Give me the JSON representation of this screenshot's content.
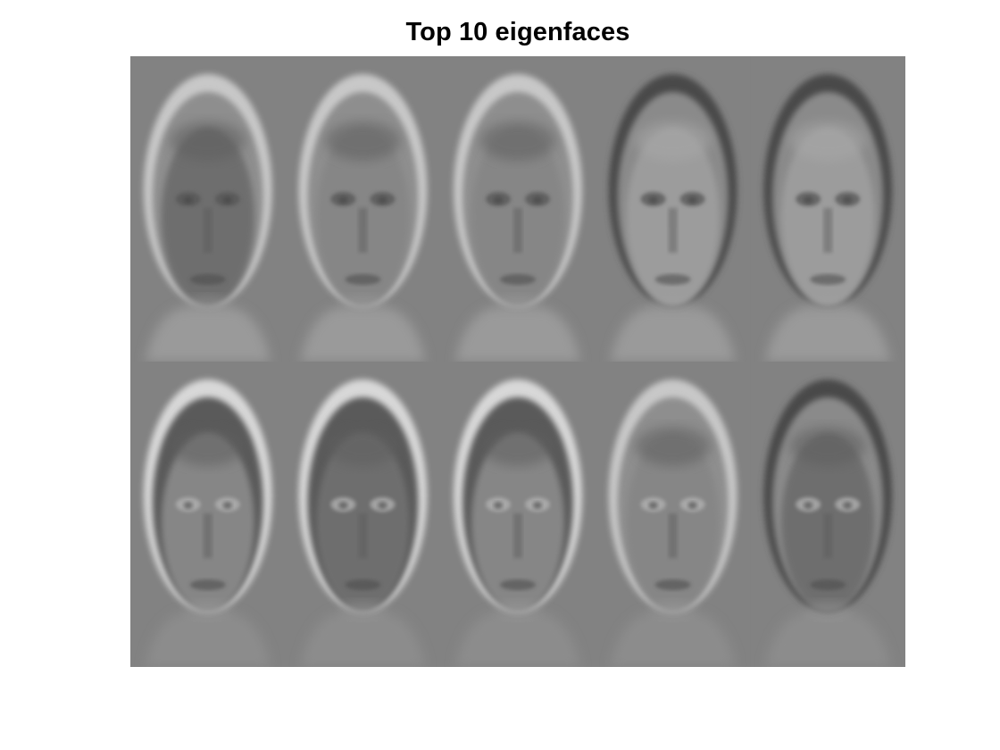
{
  "figure": {
    "title": "Top 10 eigenfaces",
    "background_color": "#ffffff",
    "tile_background_color": "#808080"
  },
  "montage": {
    "rows": 2,
    "columns": 5,
    "eigenfaces": [
      {
        "index": 1,
        "face_tone": "dark",
        "hair_tone": "light-halo"
      },
      {
        "index": 2,
        "face_tone": "neutral",
        "hair_tone": "light-halo"
      },
      {
        "index": 3,
        "face_tone": "neutral",
        "hair_tone": "light-halo"
      },
      {
        "index": 4,
        "face_tone": "light",
        "hair_tone": "dark-halo"
      },
      {
        "index": 5,
        "face_tone": "light",
        "hair_tone": "dark-halo"
      },
      {
        "index": 6,
        "face_tone": "neutral",
        "hair_tone": "contrast-halo"
      },
      {
        "index": 7,
        "face_tone": "dark",
        "hair_tone": "contrast-halo"
      },
      {
        "index": 8,
        "face_tone": "neutral",
        "hair_tone": "contrast-halo"
      },
      {
        "index": 9,
        "face_tone": "neutral",
        "hair_tone": "light-halo"
      },
      {
        "index": 10,
        "face_tone": "dark",
        "hair_tone": "dark-halo"
      }
    ]
  }
}
